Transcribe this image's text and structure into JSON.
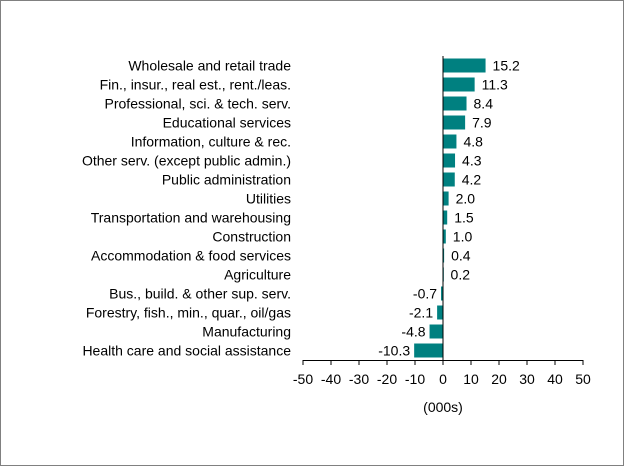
{
  "chart_data": {
    "type": "bar",
    "orientation": "horizontal",
    "title": "",
    "xlabel": "(000s)",
    "ylabel": "",
    "xlim": [
      -50,
      50
    ],
    "x_ticks": [
      "-50",
      "-40",
      "-30",
      "-20",
      "-10",
      "0",
      "10",
      "20",
      "30",
      "40",
      "50"
    ],
    "grid": false,
    "legend": "none",
    "bar_color": "#008080",
    "categories": [
      "Wholesale and retail trade",
      "Fin., insur., real est., rent./leas.",
      "Professional, sci. & tech. serv.",
      "Educational services",
      "Information, culture & rec.",
      "Other serv. (except public admin.)",
      "Public administration",
      "Utilities",
      "Transportation and warehousing",
      "Construction",
      "Accommodation & food services",
      "Agriculture",
      "Bus., build. & other sup. serv.",
      "Forestry, fish., min., quar., oil/gas",
      "Manufacturing",
      "Health care and social assistance"
    ],
    "values": [
      15.2,
      11.3,
      8.4,
      7.9,
      4.8,
      4.3,
      4.2,
      2.0,
      1.5,
      1.0,
      0.4,
      0.2,
      -0.7,
      -2.1,
      -4.8,
      -10.3
    ],
    "value_labels": [
      "15.2",
      "11.3",
      "8.4",
      "7.9",
      "4.8",
      "4.3",
      "4.2",
      "2.0",
      "1.5",
      "1.0",
      "0.4",
      "0.2",
      "-0.7",
      "-2.1",
      "-4.8",
      "-10.3"
    ]
  }
}
